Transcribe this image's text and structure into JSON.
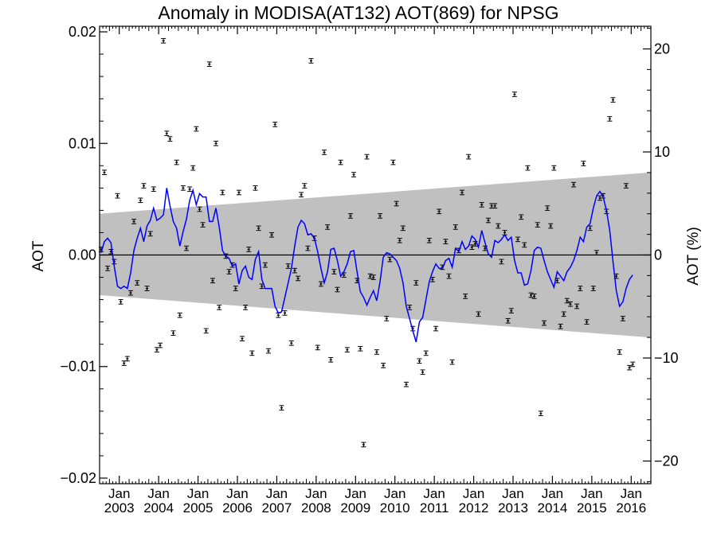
{
  "chart_data": {
    "type": "scatter",
    "title": "Anomaly in MODISA(AT132) AOT(869) for NPSG",
    "ylabel": "AOT",
    "ylabel_right": "AOT (%)",
    "xlim": [
      "2002-07-01",
      "2016-07-01"
    ],
    "ylim": [
      -0.0205,
      0.0205
    ],
    "ylim_right": [
      -22.2,
      22.2
    ],
    "yticks": [
      -0.02,
      -0.01,
      0.0,
      0.01,
      0.02
    ],
    "yticklabels": [
      "−0.02",
      "−0.01",
      "0.00",
      "0.01",
      "0.02"
    ],
    "yticks_right": [
      -20,
      -10,
      0,
      10,
      20
    ],
    "yticklabels_right": [
      "−20",
      "−10",
      "0",
      "10",
      "20"
    ],
    "xticks": [
      {
        "top": "Jan",
        "bottom": "2003",
        "date": "2003-01-01"
      },
      {
        "top": "Jan",
        "bottom": "2004",
        "date": "2004-01-01"
      },
      {
        "top": "Jan",
        "bottom": "2005",
        "date": "2005-01-01"
      },
      {
        "top": "Jan",
        "bottom": "2006",
        "date": "2006-01-01"
      },
      {
        "top": "Jan",
        "bottom": "2007",
        "date": "2007-01-01"
      },
      {
        "top": "Jan",
        "bottom": "2008",
        "date": "2008-01-01"
      },
      {
        "top": "Jan",
        "bottom": "2009",
        "date": "2009-01-01"
      },
      {
        "top": "Jan",
        "bottom": "2010",
        "date": "2010-01-01"
      },
      {
        "top": "Jan",
        "bottom": "2011",
        "date": "2011-01-01"
      },
      {
        "top": "Jan",
        "bottom": "2012",
        "date": "2012-01-01"
      },
      {
        "top": "Jan",
        "bottom": "2013",
        "date": "2013-01-01"
      },
      {
        "top": "Jan",
        "bottom": "2014",
        "date": "2014-01-01"
      },
      {
        "top": "Jan",
        "bottom": "2015",
        "date": "2015-01-01"
      },
      {
        "top": "Jan",
        "bottom": "2016",
        "date": "2016-01-01"
      }
    ],
    "band": {
      "color": "#c0c0c0",
      "upper": [
        [
          "2002-07-01",
          0.0037
        ],
        [
          "2016-07-01",
          0.0074
        ]
      ],
      "lower": [
        [
          "2002-07-01",
          -0.0036
        ],
        [
          "2016-07-01",
          -0.0074
        ]
      ]
    },
    "zero_line": 0.0,
    "points_color": "#000000",
    "line_color": "#0000ff",
    "points": [
      [
        "2002-07",
        0.0005
      ],
      [
        "2002-08",
        0.0074
      ],
      [
        "2002-09",
        -0.0012
      ],
      [
        "2002-10",
        0.0003
      ],
      [
        "2002-11",
        -0.0006
      ],
      [
        "2002-12",
        0.0053
      ],
      [
        "2003-01",
        -0.0042
      ],
      [
        "2003-02",
        -0.0097
      ],
      [
        "2003-03",
        -0.0093
      ],
      [
        "2003-04",
        -0.0034
      ],
      [
        "2003-05",
        0.003
      ],
      [
        "2003-06",
        -0.0025
      ],
      [
        "2003-07",
        0.0049
      ],
      [
        "2003-08",
        0.0062
      ],
      [
        "2003-09",
        -0.003
      ],
      [
        "2003-10",
        0.0019
      ],
      [
        "2003-11",
        0.0059
      ],
      [
        "2003-12",
        -0.0085
      ],
      [
        "2004-01",
        -0.0081
      ],
      [
        "2004-02",
        0.0192
      ],
      [
        "2004-03",
        0.0109
      ],
      [
        "2004-04",
        0.0104
      ],
      [
        "2004-05",
        -0.007
      ],
      [
        "2004-06",
        0.0083
      ],
      [
        "2004-07",
        -0.0054
      ],
      [
        "2004-08",
        0.006
      ],
      [
        "2004-09",
        0.0006
      ],
      [
        "2004-10",
        0.0059
      ],
      [
        "2004-11",
        0.0078
      ],
      [
        "2004-12",
        0.0113
      ],
      [
        "2005-01",
        0.0041
      ],
      [
        "2005-02",
        0.0027
      ],
      [
        "2005-03",
        -0.0068
      ],
      [
        "2005-04",
        0.0171
      ],
      [
        "2005-05",
        -0.0023
      ],
      [
        "2005-06",
        0.01
      ],
      [
        "2005-07",
        -0.0047
      ],
      [
        "2005-08",
        0.0056
      ],
      [
        "2005-09",
        -0.0001
      ],
      [
        "2005-10",
        -0.0015
      ],
      [
        "2005-11",
        -0.0009
      ],
      [
        "2005-12",
        -0.003
      ],
      [
        "2006-01",
        0.0056
      ],
      [
        "2006-02",
        -0.0075
      ],
      [
        "2006-03",
        -0.0047
      ],
      [
        "2006-04",
        0.0005
      ],
      [
        "2006-05",
        -0.0088
      ],
      [
        "2006-06",
        0.006
      ],
      [
        "2006-07",
        0.0024
      ],
      [
        "2006-08",
        -0.0028
      ],
      [
        "2006-09",
        -0.0009
      ],
      [
        "2006-10",
        -0.0086
      ],
      [
        "2006-11",
        0.0018
      ],
      [
        "2006-12",
        0.0117
      ],
      [
        "2007-01",
        -0.0054
      ],
      [
        "2007-02",
        -0.0137
      ],
      [
        "2007-03",
        -0.0052
      ],
      [
        "2007-04",
        -0.001
      ],
      [
        "2007-05",
        -0.0079
      ],
      [
        "2007-06",
        -0.0014
      ],
      [
        "2007-07",
        -0.0021
      ],
      [
        "2007-08",
        0.0054
      ],
      [
        "2007-09",
        0.0062
      ],
      [
        "2007-10",
        0.0006
      ],
      [
        "2007-11",
        0.0174
      ],
      [
        "2007-12",
        0.0015
      ],
      [
        "2008-01",
        -0.0083
      ],
      [
        "2008-02",
        -0.0026
      ],
      [
        "2008-03",
        0.0092
      ],
      [
        "2008-04",
        0.0025
      ],
      [
        "2008-05",
        -0.0094
      ],
      [
        "2008-06",
        -0.0015
      ],
      [
        "2008-07",
        -0.0031
      ],
      [
        "2008-08",
        0.0083
      ],
      [
        "2008-09",
        -0.0018
      ],
      [
        "2008-10",
        -0.0085
      ],
      [
        "2008-11",
        0.0035
      ],
      [
        "2008-12",
        0.0072
      ],
      [
        "2009-01",
        -0.0023
      ],
      [
        "2009-02",
        -0.0084
      ],
      [
        "2009-03",
        -0.017
      ],
      [
        "2009-04",
        0.0088
      ],
      [
        "2009-05",
        -0.0019
      ],
      [
        "2009-06",
        -0.002
      ],
      [
        "2009-07",
        -0.0087
      ],
      [
        "2009-08",
        0.0035
      ],
      [
        "2009-09",
        -0.0099
      ],
      [
        "2009-10",
        -0.0057
      ],
      [
        "2009-11",
        -0.0004
      ],
      [
        "2009-12",
        0.0083
      ],
      [
        "2010-01",
        0.0046
      ],
      [
        "2010-02",
        0.0013
      ],
      [
        "2010-03",
        0.0024
      ],
      [
        "2010-04",
        -0.0116
      ],
      [
        "2010-05",
        -0.0047
      ],
      [
        "2010-06",
        -0.0066
      ],
      [
        "2010-07",
        -0.0025
      ],
      [
        "2010-08",
        -0.0095
      ],
      [
        "2010-09",
        -0.0105
      ],
      [
        "2010-10",
        -0.0088
      ],
      [
        "2010-11",
        0.0013
      ],
      [
        "2010-12",
        -0.0022
      ],
      [
        "2011-01",
        -0.0066
      ],
      [
        "2011-02",
        0.0039
      ],
      [
        "2011-03",
        -0.0011
      ],
      [
        "2011-04",
        0.0012
      ],
      [
        "2011-05",
        -0.0019
      ],
      [
        "2011-06",
        -0.0096
      ],
      [
        "2011-07",
        0.0025
      ],
      [
        "2011-08",
        0.0004
      ],
      [
        "2011-09",
        0.0056
      ],
      [
        "2011-10",
        -0.0037
      ],
      [
        "2011-11",
        0.0088
      ],
      [
        "2011-12",
        0.0007
      ],
      [
        "2012-01",
        0.001
      ],
      [
        "2012-02",
        -0.0053
      ],
      [
        "2012-03",
        0.0045
      ],
      [
        "2012-04",
        0.0006
      ],
      [
        "2012-05",
        0.0031
      ],
      [
        "2012-06",
        0.0044
      ],
      [
        "2012-07",
        0.0044
      ],
      [
        "2012-08",
        0.0026
      ],
      [
        "2012-09",
        -0.0006
      ],
      [
        "2012-10",
        0.002
      ],
      [
        "2012-11",
        -0.0059
      ],
      [
        "2012-12",
        -0.005
      ],
      [
        "2013-01",
        0.0144
      ],
      [
        "2013-02",
        0.0014
      ],
      [
        "2013-03",
        0.0034
      ],
      [
        "2013-04",
        0.0009
      ],
      [
        "2013-05",
        0.0078
      ],
      [
        "2013-06",
        -0.0036
      ],
      [
        "2013-07",
        -0.0037
      ],
      [
        "2013-08",
        0.0027
      ],
      [
        "2013-09",
        -0.0142
      ],
      [
        "2013-10",
        -0.0061
      ],
      [
        "2013-11",
        0.0042
      ],
      [
        "2013-12",
        0.0026
      ],
      [
        "2014-01",
        0.0078
      ],
      [
        "2014-02",
        -0.0023
      ],
      [
        "2014-03",
        -0.0064
      ],
      [
        "2014-04",
        -0.0053
      ],
      [
        "2014-05",
        -0.0041
      ],
      [
        "2014-06",
        -0.0044
      ],
      [
        "2014-07",
        0.0063
      ],
      [
        "2014-08",
        -0.0046
      ],
      [
        "2014-09",
        -0.003
      ],
      [
        "2014-10",
        0.0082
      ],
      [
        "2014-11",
        -0.006
      ],
      [
        "2014-12",
        0.0024
      ],
      [
        "2015-01",
        -0.003
      ],
      [
        "2015-02",
        0.0002
      ],
      [
        "2015-03",
        0.0051
      ],
      [
        "2015-04",
        0.0053
      ],
      [
        "2015-05",
        0.0039
      ],
      [
        "2015-06",
        0.0122
      ],
      [
        "2015-07",
        0.0139
      ],
      [
        "2015-08",
        -0.0019
      ],
      [
        "2015-09",
        -0.0087
      ],
      [
        "2015-10",
        -0.0057
      ],
      [
        "2015-11",
        0.0062
      ],
      [
        "2015-12",
        -0.0101
      ],
      [
        "2016-01",
        -0.0098
      ]
    ],
    "error_halfwidth": 0.0002,
    "line": [
      [
        "2002-07",
        0.0002
      ],
      [
        "2002-08",
        0.0012
      ],
      [
        "2002-09",
        0.0015
      ],
      [
        "2002-10",
        0.0011
      ],
      [
        "2002-11",
        -0.001
      ],
      [
        "2002-12",
        -0.0028
      ],
      [
        "2003-01",
        -0.003
      ],
      [
        "2003-02",
        -0.0028
      ],
      [
        "2003-03",
        -0.003
      ],
      [
        "2003-04",
        -0.0016
      ],
      [
        "2003-05",
        0.0004
      ],
      [
        "2003-06",
        0.0015
      ],
      [
        "2003-07",
        0.0024
      ],
      [
        "2003-08",
        0.0012
      ],
      [
        "2003-09",
        0.0026
      ],
      [
        "2003-10",
        0.0031
      ],
      [
        "2003-11",
        0.0042
      ],
      [
        "2003-12",
        0.0031
      ],
      [
        "2004-01",
        0.0033
      ],
      [
        "2004-02",
        0.0036
      ],
      [
        "2004-03",
        0.006
      ],
      [
        "2004-04",
        0.0044
      ],
      [
        "2004-05",
        0.003
      ],
      [
        "2004-06",
        0.0024
      ],
      [
        "2004-07",
        0.0008
      ],
      [
        "2004-08",
        0.0021
      ],
      [
        "2004-09",
        0.0032
      ],
      [
        "2004-10",
        0.0049
      ],
      [
        "2004-11",
        0.0058
      ],
      [
        "2004-12",
        0.0045
      ],
      [
        "2005-01",
        0.0055
      ],
      [
        "2005-02",
        0.0052
      ],
      [
        "2005-03",
        0.0052
      ],
      [
        "2005-04",
        0.003
      ],
      [
        "2005-05",
        0.003
      ],
      [
        "2005-06",
        0.0042
      ],
      [
        "2005-07",
        0.0025
      ],
      [
        "2005-08",
        0.0004
      ],
      [
        "2005-09",
        -0.0001
      ],
      [
        "2005-10",
        -0.0003
      ],
      [
        "2005-11",
        -0.001
      ],
      [
        "2005-12",
        -0.0008
      ],
      [
        "2006-01",
        -0.0026
      ],
      [
        "2006-02",
        -0.0014
      ],
      [
        "2006-03",
        -0.001
      ],
      [
        "2006-04",
        -0.002
      ],
      [
        "2006-05",
        -0.0022
      ],
      [
        "2006-06",
        -0.0004
      ],
      [
        "2006-07",
        0.0003
      ],
      [
        "2006-08",
        -0.0022
      ],
      [
        "2006-09",
        -0.003
      ],
      [
        "2006-10",
        -0.003
      ],
      [
        "2006-11",
        -0.003
      ],
      [
        "2006-12",
        -0.0046
      ],
      [
        "2007-01",
        -0.0052
      ],
      [
        "2007-02",
        -0.0051
      ],
      [
        "2007-03",
        -0.0038
      ],
      [
        "2007-04",
        -0.0025
      ],
      [
        "2007-05",
        -0.0012
      ],
      [
        "2007-06",
        0.0008
      ],
      [
        "2007-07",
        0.0025
      ],
      [
        "2007-08",
        0.0031
      ],
      [
        "2007-09",
        0.0028
      ],
      [
        "2007-10",
        0.0018
      ],
      [
        "2007-11",
        0.0019
      ],
      [
        "2007-12",
        0.0015
      ],
      [
        "2008-01",
        0.0003
      ],
      [
        "2008-02",
        -0.0012
      ],
      [
        "2008-03",
        -0.0025
      ],
      [
        "2008-04",
        -0.0015
      ],
      [
        "2008-05",
        0.0005
      ],
      [
        "2008-06",
        0.0006
      ],
      [
        "2008-07",
        -0.0005
      ],
      [
        "2008-08",
        -0.0019
      ],
      [
        "2008-09",
        -0.0015
      ],
      [
        "2008-10",
        -0.0008
      ],
      [
        "2008-11",
        0.0003
      ],
      [
        "2008-12",
        0.0004
      ],
      [
        "2009-01",
        -0.0015
      ],
      [
        "2009-02",
        -0.0033
      ],
      [
        "2009-03",
        -0.0038
      ],
      [
        "2009-04",
        -0.0045
      ],
      [
        "2009-05",
        -0.0038
      ],
      [
        "2009-06",
        -0.0032
      ],
      [
        "2009-07",
        -0.0041
      ],
      [
        "2009-08",
        -0.0024
      ],
      [
        "2009-09",
        -0.0002
      ],
      [
        "2009-10",
        0.0002
      ],
      [
        "2009-11",
        0.0001
      ],
      [
        "2009-12",
        -0.0002
      ],
      [
        "2010-01",
        -0.0005
      ],
      [
        "2010-02",
        -0.0012
      ],
      [
        "2010-03",
        -0.0025
      ],
      [
        "2010-04",
        -0.0046
      ],
      [
        "2010-05",
        -0.0057
      ],
      [
        "2010-06",
        -0.0068
      ],
      [
        "2010-07",
        -0.0078
      ],
      [
        "2010-08",
        -0.006
      ],
      [
        "2010-09",
        -0.0056
      ],
      [
        "2010-10",
        -0.004
      ],
      [
        "2010-11",
        -0.0024
      ],
      [
        "2010-12",
        -0.0015
      ],
      [
        "2011-01",
        -0.0008
      ],
      [
        "2011-02",
        -0.0012
      ],
      [
        "2011-03",
        -0.0012
      ],
      [
        "2011-04",
        -0.0005
      ],
      [
        "2011-05",
        -0.0003
      ],
      [
        "2011-06",
        -0.0011
      ],
      [
        "2011-07",
        0.0006
      ],
      [
        "2011-08",
        0.0003
      ],
      [
        "2011-09",
        0.0012
      ],
      [
        "2011-10",
        0.0005
      ],
      [
        "2011-11",
        0.0008
      ],
      [
        "2011-12",
        0.0017
      ],
      [
        "2012-01",
        0.0014
      ],
      [
        "2012-02",
        0.0007
      ],
      [
        "2012-03",
        0.0022
      ],
      [
        "2012-04",
        0.0011
      ],
      [
        "2012-05",
        0.0001
      ],
      [
        "2012-06",
        -0.0002
      ],
      [
        "2012-07",
        0.0013
      ],
      [
        "2012-08",
        0.0011
      ],
      [
        "2012-09",
        0.0014
      ],
      [
        "2012-10",
        0.0018
      ],
      [
        "2012-11",
        0.0013
      ],
      [
        "2012-12",
        0.0016
      ],
      [
        "2013-01",
        -0.0005
      ],
      [
        "2013-02",
        -0.0016
      ],
      [
        "2013-03",
        -0.0016
      ],
      [
        "2013-04",
        -0.0027
      ],
      [
        "2013-05",
        -0.0026
      ],
      [
        "2013-06",
        -0.0014
      ],
      [
        "2013-07",
        0.0004
      ],
      [
        "2013-08",
        0.0007
      ],
      [
        "2013-09",
        0.0006
      ],
      [
        "2013-10",
        -0.0005
      ],
      [
        "2013-11",
        -0.0015
      ],
      [
        "2013-12",
        -0.0022
      ],
      [
        "2014-01",
        -0.0029
      ],
      [
        "2014-02",
        -0.0015
      ],
      [
        "2014-03",
        -0.0019
      ],
      [
        "2014-04",
        -0.0023
      ],
      [
        "2014-05",
        -0.0015
      ],
      [
        "2014-06",
        -0.0011
      ],
      [
        "2014-07",
        -0.0005
      ],
      [
        "2014-08",
        0.0004
      ],
      [
        "2014-09",
        0.0016
      ],
      [
        "2014-10",
        0.0012
      ],
      [
        "2014-11",
        0.0025
      ],
      [
        "2014-12",
        0.0028
      ],
      [
        "2015-01",
        0.0042
      ],
      [
        "2015-02",
        0.0053
      ],
      [
        "2015-03",
        0.0057
      ],
      [
        "2015-04",
        0.0052
      ],
      [
        "2015-05",
        0.004
      ],
      [
        "2015-06",
        0.0022
      ],
      [
        "2015-07",
        -0.0006
      ],
      [
        "2015-08",
        -0.0032
      ],
      [
        "2015-09",
        -0.0046
      ],
      [
        "2015-10",
        -0.0042
      ],
      [
        "2015-11",
        -0.003
      ],
      [
        "2015-12",
        -0.0022
      ],
      [
        "2016-01",
        -0.0018
      ]
    ]
  }
}
